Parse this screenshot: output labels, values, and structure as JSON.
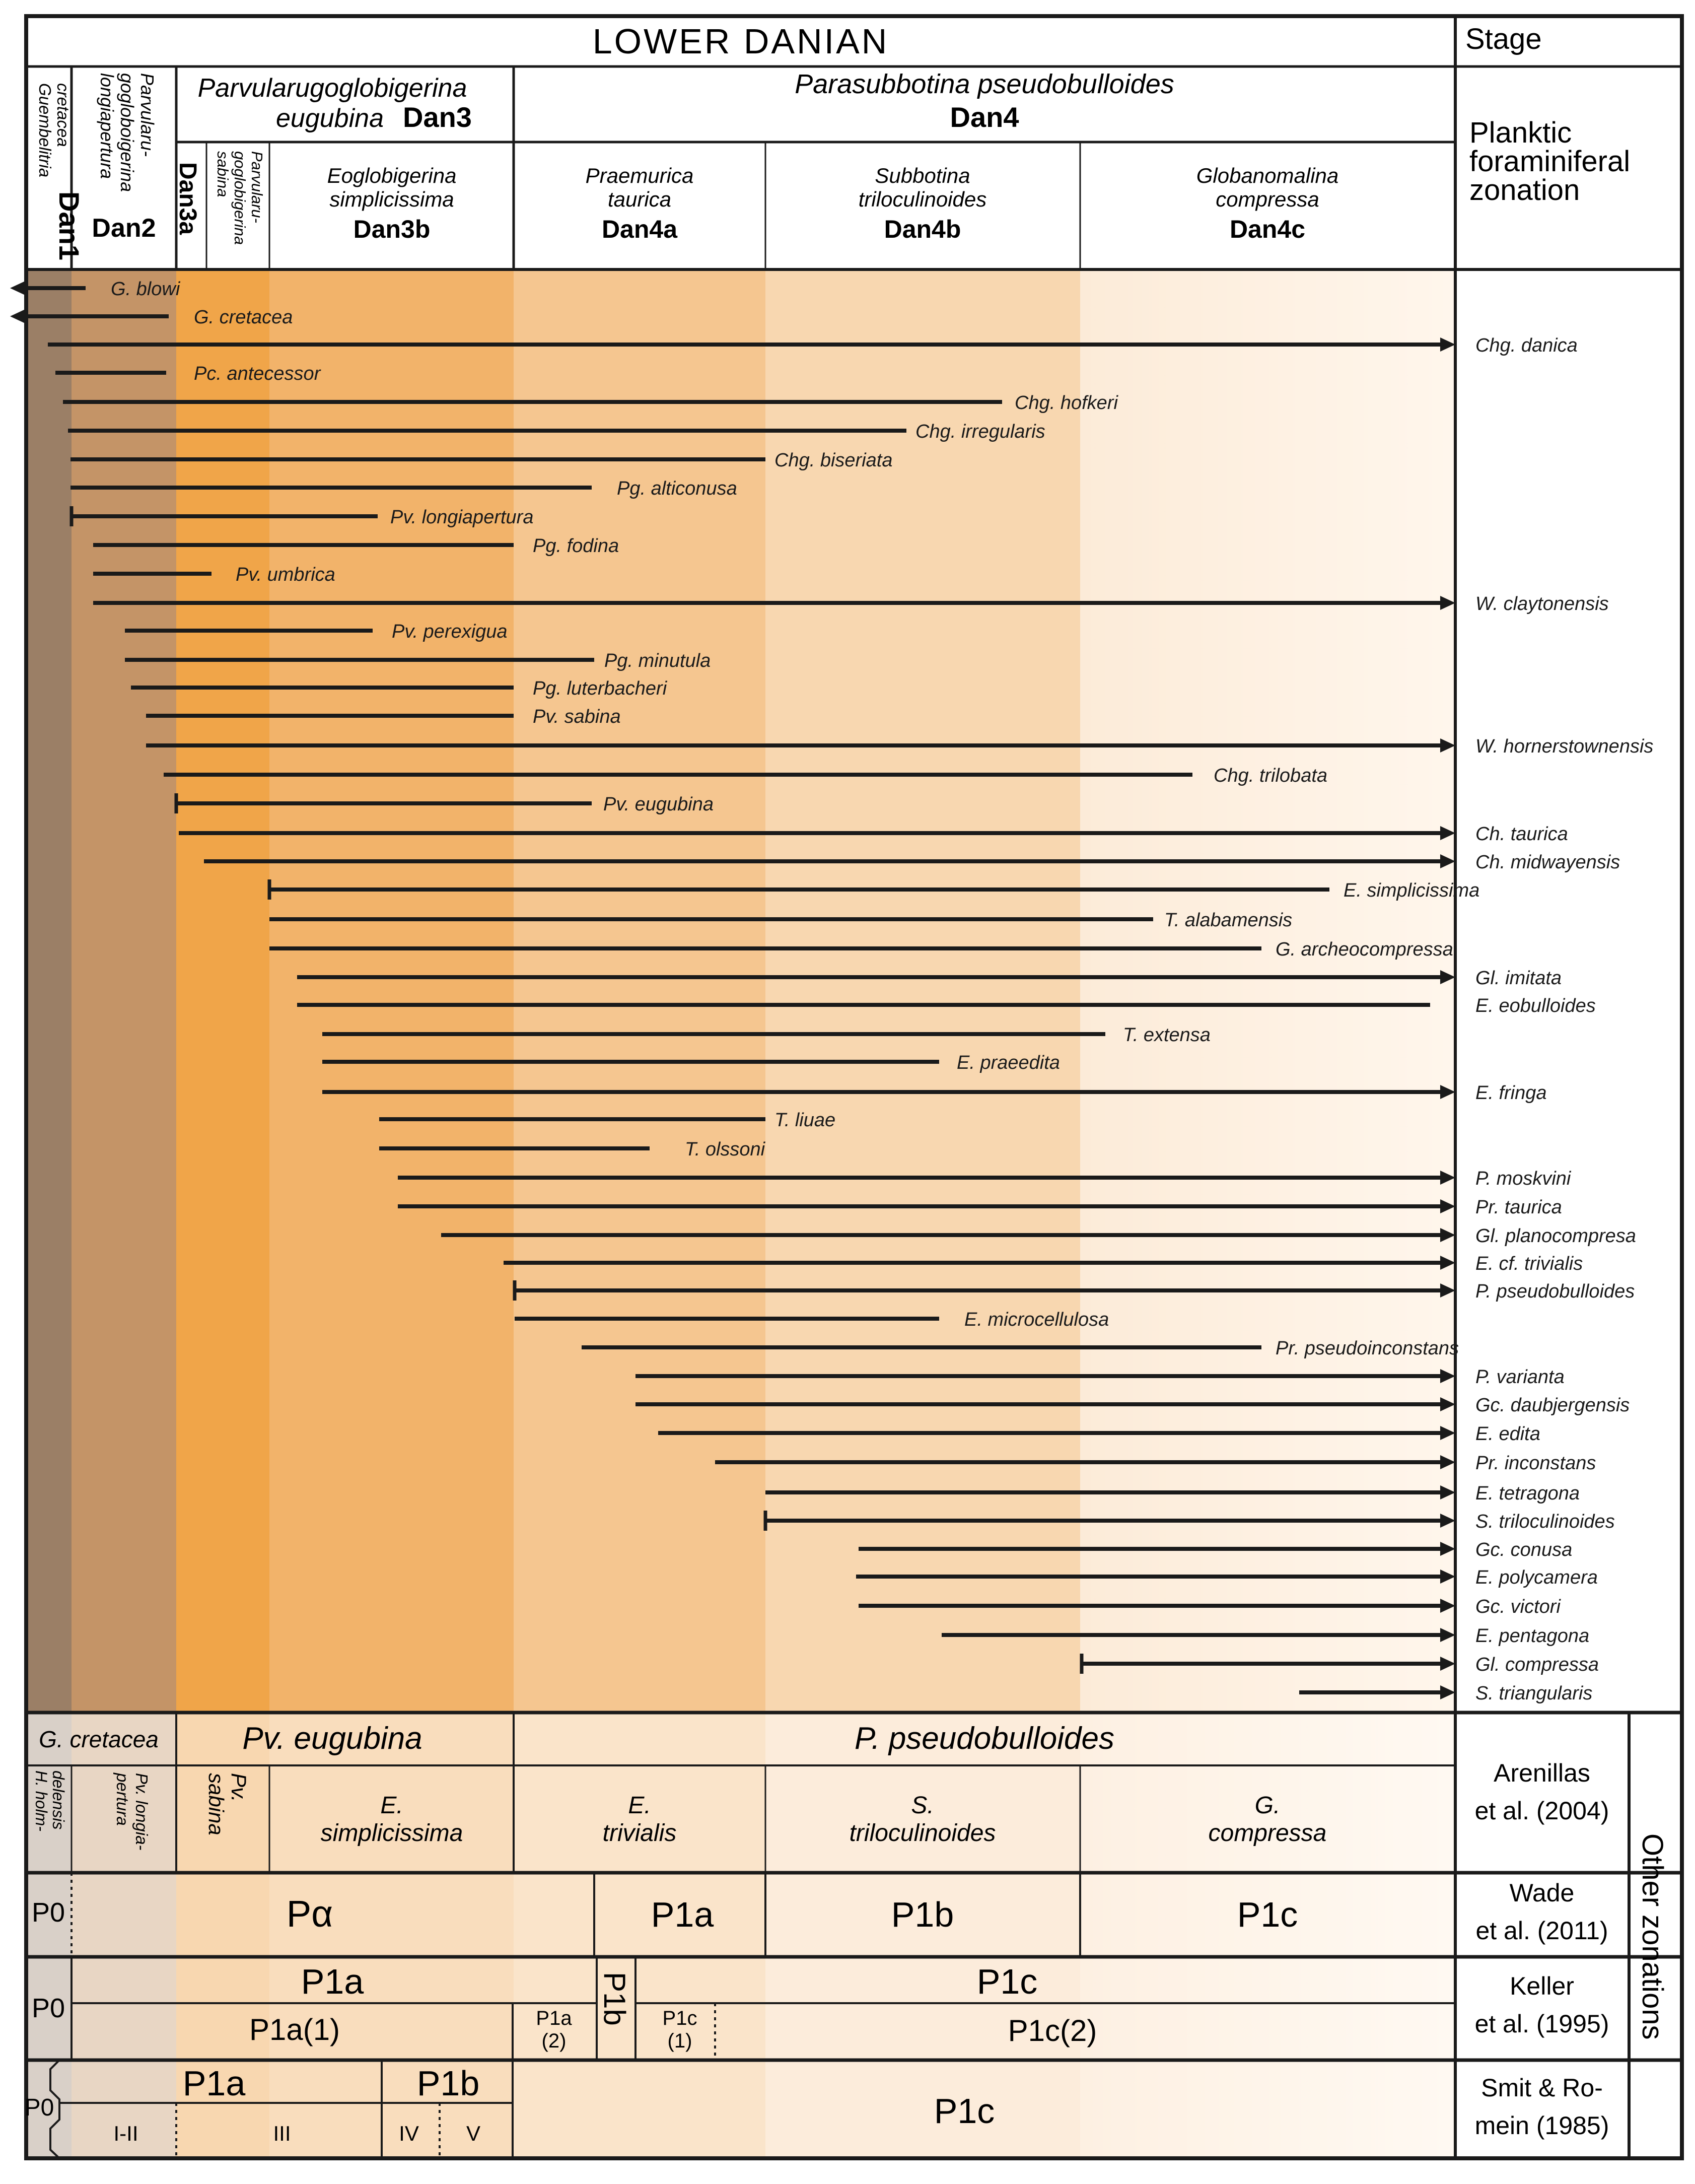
{
  "title": "LOWER DANIAN",
  "stage_label": "Stage",
  "zonation_label": [
    "Planktic",
    "foraminiferal",
    "zonation"
  ],
  "other_zonations_label": "Other zonations",
  "zones": {
    "dan1": {
      "name": [
        "Guembelitria",
        "cretacea"
      ],
      "code": "Dan1"
    },
    "dan2": {
      "name": [
        "Parvularu-",
        "gogloboigerina",
        "longiapertura"
      ],
      "code": "Dan2"
    },
    "dan3": {
      "name": "Parvularugoglobigerina",
      "name2": "eugubina",
      "code": "Dan3"
    },
    "dan3a": {
      "name": [
        "Parvularu-",
        "goglobigerina",
        "sabina"
      ],
      "code": "Dan3a"
    },
    "dan3b": {
      "name": [
        "Eoglobigerina",
        "simplicissima"
      ],
      "code": "Dan3b"
    },
    "dan4": {
      "name": "Parasubbotina  pseudobulloides",
      "code": "Dan4"
    },
    "dan4a": {
      "name": [
        "Praemurica",
        "taurica"
      ],
      "code": "Dan4a"
    },
    "dan4b": {
      "name": [
        "Subbotina",
        "triloculinoides"
      ],
      "code": "Dan4b"
    },
    "dan4c": {
      "name": [
        "Globanomalina",
        "compressa"
      ],
      "code": "Dan4c"
    }
  },
  "colors": {
    "dan1": "#9b7f66",
    "dan2": "#c49467",
    "dan3a": "#f0a549",
    "dan3b": "#f2b36a",
    "dan4a": "#f5c690",
    "dan4b": "#f8d7b0",
    "dan4c": "#fcebd8",
    "dan4c_end": "#fff6ec",
    "line": "#1a1a1a"
  },
  "taxa": [
    {
      "name": "G. blowi",
      "start": "Dan1",
      "end": "Dan2",
      "start_type": "plain",
      "end_type": "arrow-left"
    },
    {
      "name": "G. cretacea",
      "start": "Dan1",
      "end": "Dan2",
      "start_type": "plain",
      "end_type": "arrow-left"
    },
    {
      "name": "Chg. danica",
      "start": "Dan1",
      "end": "beyond Dan4c",
      "start_type": "plain",
      "end_type": "arrow-right"
    },
    {
      "name": "Pc. antecessor",
      "start": "Dan1",
      "end": "Dan2",
      "start_type": "plain",
      "end_type": "plain"
    },
    {
      "name": "Chg. hofkeri",
      "start": "Dan1",
      "end": "Dan4b",
      "start_type": "plain",
      "end_type": "plain"
    },
    {
      "name": "Chg. irregularis",
      "start": "Dan1",
      "end": "Dan4b",
      "start_type": "plain",
      "end_type": "plain"
    },
    {
      "name": "Chg. biseriata",
      "start": "Dan1",
      "end": "Dan4a",
      "start_type": "plain",
      "end_type": "plain"
    },
    {
      "name": "Pg. alticonusa",
      "start": "Dan1",
      "end": "Dan4a",
      "start_type": "plain",
      "end_type": "plain"
    },
    {
      "name": "Pv. longiapertura",
      "start": "Dan1",
      "end": "Dan3b",
      "start_type": "bar",
      "end_type": "plain"
    },
    {
      "name": "Pg. fodina",
      "start": "Dan2",
      "end": "Dan3b",
      "start_type": "plain",
      "end_type": "plain"
    },
    {
      "name": "Pv. umbrica",
      "start": "Dan2",
      "end": "Dan3a",
      "start_type": "plain",
      "end_type": "plain"
    },
    {
      "name": "W. claytonensis",
      "start": "Dan2",
      "end": "beyond Dan4c",
      "start_type": "plain",
      "end_type": "arrow-right"
    },
    {
      "name": "Pv. perexigua",
      "start": "Dan2",
      "end": "Dan3b",
      "start_type": "plain",
      "end_type": "plain"
    },
    {
      "name": "Pg. minutula",
      "start": "Dan2",
      "end": "Dan4a",
      "start_type": "plain",
      "end_type": "plain"
    },
    {
      "name": "Pg. luterbacheri",
      "start": "Dan2",
      "end": "Dan3b",
      "start_type": "plain",
      "end_type": "plain"
    },
    {
      "name": "Pv. sabina",
      "start": "Dan2",
      "end": "Dan3b",
      "start_type": "plain",
      "end_type": "plain"
    },
    {
      "name": "W. hornerstownensis",
      "start": "Dan2",
      "end": "beyond Dan4c",
      "start_type": "plain",
      "end_type": "arrow-right"
    },
    {
      "name": "Chg. trilobata",
      "start": "Dan2",
      "end": "Dan4c",
      "start_type": "plain",
      "end_type": "plain"
    },
    {
      "name": "Pv. eugubina",
      "start": "Dan3a",
      "end": "Dan4a",
      "start_type": "bar",
      "end_type": "plain"
    },
    {
      "name": "Ch. taurica",
      "start": "Dan3a",
      "end": "beyond Dan4c",
      "start_type": "plain",
      "end_type": "arrow-right"
    },
    {
      "name": "Ch. midwayensis",
      "start": "Dan3a",
      "end": "beyond Dan4c",
      "start_type": "plain",
      "end_type": "arrow-right"
    },
    {
      "name": "E. simplicissima",
      "start": "Dan3b",
      "end": "Dan4c",
      "start_type": "bar",
      "end_type": "plain"
    },
    {
      "name": "T. alabamensis",
      "start": "Dan3b",
      "end": "Dan4c",
      "start_type": "plain",
      "end_type": "plain"
    },
    {
      "name": "G. archeocompressa",
      "start": "Dan3b",
      "end": "Dan4c",
      "start_type": "plain",
      "end_type": "plain"
    },
    {
      "name": "Gl. imitata",
      "start": "Dan3b",
      "end": "beyond Dan4c",
      "start_type": "plain",
      "end_type": "arrow-right"
    },
    {
      "name": "E. eobulloides",
      "start": "Dan3b",
      "end": "Dan4c",
      "start_type": "plain",
      "end_type": "plain"
    },
    {
      "name": "T. extensa",
      "start": "Dan3b",
      "end": "Dan4c",
      "start_type": "plain",
      "end_type": "plain"
    },
    {
      "name": "E. praeedita",
      "start": "Dan3b",
      "end": "Dan4b",
      "start_type": "plain",
      "end_type": "plain"
    },
    {
      "name": "E. fringa",
      "start": "Dan3b",
      "end": "beyond Dan4c",
      "start_type": "plain",
      "end_type": "arrow-right"
    },
    {
      "name": "T. liuae",
      "start": "Dan3b",
      "end": "Dan4a",
      "start_type": "plain",
      "end_type": "plain"
    },
    {
      "name": "T. olssoni",
      "start": "Dan3b",
      "end": "Dan4a",
      "start_type": "plain",
      "end_type": "plain"
    },
    {
      "name": "P. moskvini",
      "start": "Dan3b",
      "end": "beyond Dan4c",
      "start_type": "plain",
      "end_type": "arrow-right"
    },
    {
      "name": "Pr. taurica",
      "start": "Dan3b",
      "end": "beyond Dan4c",
      "start_type": "plain",
      "end_type": "arrow-right"
    },
    {
      "name": "Gl. planocompresa",
      "start": "Dan3b",
      "end": "beyond Dan4c",
      "start_type": "plain",
      "end_type": "arrow-right"
    },
    {
      "name": "E. cf. trivialis",
      "start": "Dan3b",
      "end": "beyond Dan4c",
      "start_type": "plain",
      "end_type": "arrow-right"
    },
    {
      "name": "P. pseudobulloides",
      "start": "Dan4a",
      "end": "beyond Dan4c",
      "start_type": "bar",
      "end_type": "arrow-right"
    },
    {
      "name": "E. microcellulosa",
      "start": "Dan4a",
      "end": "Dan4b",
      "start_type": "plain",
      "end_type": "plain"
    },
    {
      "name": "Pr. pseudoinconstans",
      "start": "Dan4a",
      "end": "Dan4c",
      "start_type": "plain",
      "end_type": "plain"
    },
    {
      "name": "P. varianta",
      "start": "Dan4a",
      "end": "beyond Dan4c",
      "start_type": "plain",
      "end_type": "arrow-right"
    },
    {
      "name": "Gc. daubjergensis",
      "start": "Dan4a",
      "end": "beyond Dan4c",
      "start_type": "plain",
      "end_type": "arrow-right"
    },
    {
      "name": "E. edita",
      "start": "Dan4a",
      "end": "beyond Dan4c",
      "start_type": "plain",
      "end_type": "arrow-right"
    },
    {
      "name": "Pr. inconstans",
      "start": "Dan4a",
      "end": "beyond Dan4c",
      "start_type": "plain",
      "end_type": "arrow-right"
    },
    {
      "name": "E. tetragona",
      "start": "Dan4b",
      "end": "beyond Dan4c",
      "start_type": "plain",
      "end_type": "arrow-right"
    },
    {
      "name": "S. triloculinoides",
      "start": "Dan4b",
      "end": "beyond Dan4c",
      "start_type": "bar",
      "end_type": "arrow-right"
    },
    {
      "name": "Gc. conusa",
      "start": "Dan4b",
      "end": "beyond Dan4c",
      "start_type": "plain",
      "end_type": "arrow-right"
    },
    {
      "name": "E. polycamera",
      "start": "Dan4b",
      "end": "beyond Dan4c",
      "start_type": "plain",
      "end_type": "arrow-right"
    },
    {
      "name": "Gc. victori",
      "start": "Dan4b",
      "end": "beyond Dan4c",
      "start_type": "plain",
      "end_type": "arrow-right"
    },
    {
      "name": "E. pentagona",
      "start": "Dan4b",
      "end": "beyond Dan4c",
      "start_type": "plain",
      "end_type": "arrow-right"
    },
    {
      "name": "Gl. compressa",
      "start": "Dan4c",
      "end": "beyond Dan4c",
      "start_type": "bar",
      "end_type": "arrow-right"
    },
    {
      "name": "S. triangularis",
      "start": "Dan4c",
      "end": "beyond Dan4c",
      "start_type": "plain",
      "end_type": "arrow-right"
    }
  ],
  "arenillas": {
    "citation": [
      "Arenillas",
      "et al. (2004)"
    ],
    "top": [
      "G. cretacea",
      "Pv. eugubina",
      "P. pseudobulloides"
    ],
    "h_holm": [
      "H. holm-",
      "delensis"
    ],
    "pv_long": [
      "Pv. longia-",
      "pertura"
    ],
    "pv_sabina": [
      "Pv.",
      "sabina"
    ],
    "e_simp": [
      "E.",
      "simplicissima"
    ],
    "e_triv": [
      "E.",
      "trivialis"
    ],
    "s_tril": [
      "S.",
      "triloculinoides"
    ],
    "g_comp": [
      "G.",
      "compressa"
    ]
  },
  "wade": {
    "citation": [
      "Wade",
      "et al. (2011)"
    ],
    "p0": "P0",
    "palpha": "Pα",
    "p1a": "P1a",
    "p1b": "P1b",
    "p1c": "P1c"
  },
  "keller": {
    "citation": [
      "Keller",
      "et al. (1995)"
    ],
    "p0": "P0",
    "p1a": "P1a",
    "p1a1": "P1a(1)",
    "p1a2": [
      "P1a",
      "(2)"
    ],
    "p1b": "P1b",
    "p1c": "P1c",
    "p1c1": [
      "P1c",
      "(1)"
    ],
    "p1c2": "P1c(2)"
  },
  "smit": {
    "citation": [
      "Smit & Ro-",
      "mein (1985)"
    ],
    "p0": "P0",
    "p1a": "P1a",
    "p1b": "P1b",
    "p1c": "P1c",
    "i_ii": "I-II",
    "iii": "III",
    "iv": "IV",
    "v": "V"
  }
}
